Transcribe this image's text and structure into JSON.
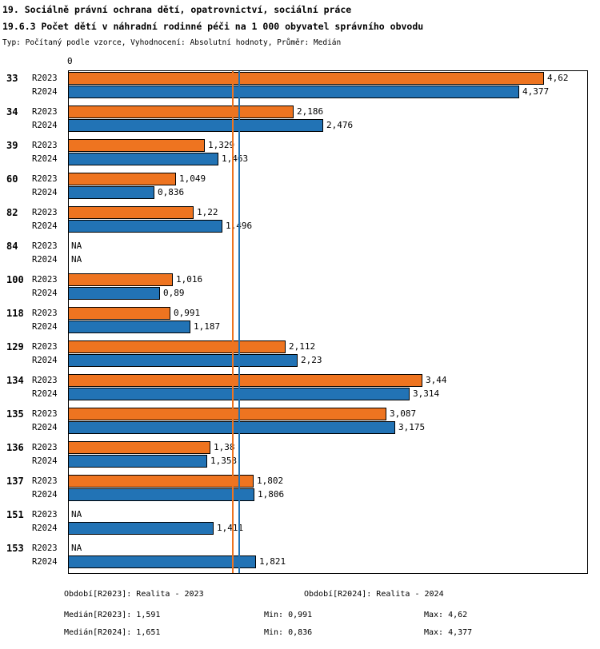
{
  "header": {
    "title_line1": "19. Sociálně právní ochrana dětí, opatrovnictví, sociální práce",
    "title_line2": "19.6.3 Počet dětí v náhradní rodinné péči na 1 000 obyvatel správního obvodu",
    "meta_line": "Typ: Počítaný podle vzorce, Vyhodnocení: Absolutní hodnoty, Průměr: Medián"
  },
  "chart_data": {
    "type": "bar",
    "orientation": "horizontal",
    "zero_label": "0",
    "xlim": [
      0,
      4.62
    ],
    "grid": false,
    "na_label": "NA",
    "series": [
      {
        "name": "R2023",
        "color": "#ee7420",
        "median": 1.591
      },
      {
        "name": "R2024",
        "color": "#2273b5",
        "median": 1.651
      }
    ],
    "rows": [
      {
        "category": "33",
        "r2023": 4.62,
        "r2023_label": "4,62",
        "r2024": 4.377,
        "r2024_label": "4,377"
      },
      {
        "category": "34",
        "r2023": 2.186,
        "r2023_label": "2,186",
        "r2024": 2.476,
        "r2024_label": "2,476"
      },
      {
        "category": "39",
        "r2023": 1.329,
        "r2023_label": "1,329",
        "r2024": 1.463,
        "r2024_label": "1,463"
      },
      {
        "category": "60",
        "r2023": 1.049,
        "r2023_label": "1,049",
        "r2024": 0.836,
        "r2024_label": "0,836"
      },
      {
        "category": "82",
        "r2023": 1.22,
        "r2023_label": "1,22",
        "r2024": 1.496,
        "r2024_label": "1,496"
      },
      {
        "category": "84",
        "r2023": null,
        "r2023_label": "NA",
        "r2024": null,
        "r2024_label": "NA"
      },
      {
        "category": "100",
        "r2023": 1.016,
        "r2023_label": "1,016",
        "r2024": 0.89,
        "r2024_label": "0,89"
      },
      {
        "category": "118",
        "r2023": 0.991,
        "r2023_label": "0,991",
        "r2024": 1.187,
        "r2024_label": "1,187"
      },
      {
        "category": "129",
        "r2023": 2.112,
        "r2023_label": "2,112",
        "r2024": 2.23,
        "r2024_label": "2,23"
      },
      {
        "category": "134",
        "r2023": 3.44,
        "r2023_label": "3,44",
        "r2024": 3.314,
        "r2024_label": "3,314"
      },
      {
        "category": "135",
        "r2023": 3.087,
        "r2023_label": "3,087",
        "r2024": 3.175,
        "r2024_label": "3,175"
      },
      {
        "category": "136",
        "r2023": 1.38,
        "r2023_label": "1,38",
        "r2024": 1.353,
        "r2024_label": "1,353"
      },
      {
        "category": "137",
        "r2023": 1.802,
        "r2023_label": "1,802",
        "r2024": 1.806,
        "r2024_label": "1,806"
      },
      {
        "category": "151",
        "r2023": null,
        "r2023_label": "NA",
        "r2024": 1.411,
        "r2024_label": "1,411"
      },
      {
        "category": "153",
        "r2023": null,
        "r2023_label": "NA",
        "r2024": 1.821,
        "r2024_label": "1,821"
      }
    ]
  },
  "footer": {
    "period_r2023": "Období[R2023]: Realita - 2023",
    "period_r2024": "Období[R2024]: Realita - 2024",
    "median_r2023": "Medián[R2023]: 1,591",
    "min_r2023": "Min: 0,991",
    "max_r2023": "Max: 4,62",
    "median_r2024": "Medián[R2024]: 1,651",
    "min_r2024": "Min: 0,836",
    "max_r2024": "Max: 4,377"
  }
}
